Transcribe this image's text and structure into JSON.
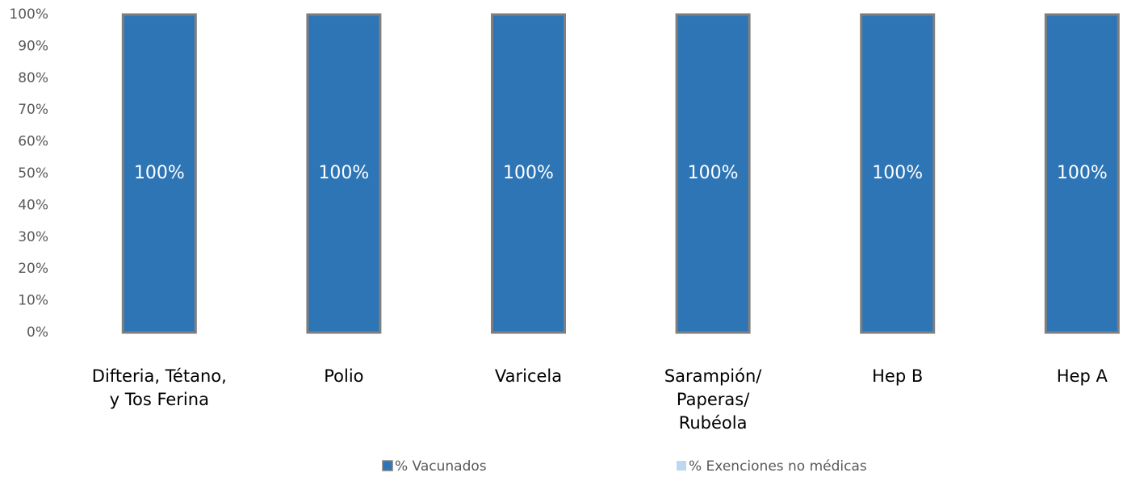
{
  "chart_data": {
    "type": "stacked_bar",
    "categories": [
      "Difteria, Tétano,\ny Tos Ferina",
      "Polio",
      "Varicela",
      "Sarampión/\nPaperas/\nRubéola",
      "Hep B",
      "Hep A"
    ],
    "series": [
      {
        "name": "% Vacunados",
        "color": "#2e75b6",
        "values": [
          100,
          100,
          100,
          100,
          100,
          100
        ],
        "value_labels": [
          "100%",
          "100%",
          "100%",
          "100%",
          "100%",
          "100%"
        ]
      },
      {
        "name": "% Exenciones no médicas",
        "color": "#bdd7ee",
        "values": [
          0,
          0,
          0,
          0,
          0,
          0
        ]
      }
    ],
    "ylim": [
      0,
      100
    ],
    "yticks": [
      {
        "value": 0,
        "label": "0%"
      },
      {
        "value": 10,
        "label": "10%"
      },
      {
        "value": 20,
        "label": "20%"
      },
      {
        "value": 30,
        "label": "30%"
      },
      {
        "value": 40,
        "label": "40%"
      },
      {
        "value": 50,
        "label": "50%"
      },
      {
        "value": 60,
        "label": "60%"
      },
      {
        "value": 70,
        "label": "70%"
      },
      {
        "value": 80,
        "label": "80%"
      },
      {
        "value": 90,
        "label": "90%"
      },
      {
        "value": 100,
        "label": "100%"
      }
    ],
    "legend": "bottom"
  }
}
